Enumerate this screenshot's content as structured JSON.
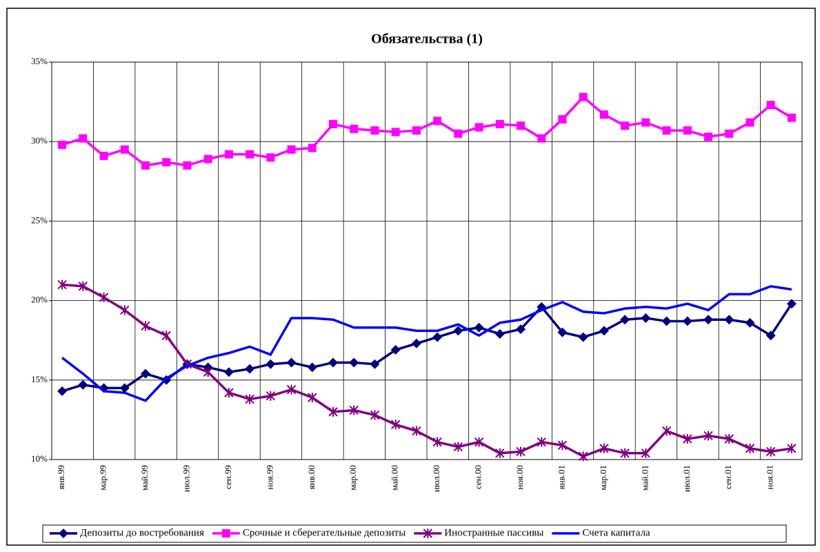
{
  "chart_data": {
    "type": "line",
    "title": "Обязательства (1)",
    "categories": [
      "янв.99",
      null,
      "мар.99",
      null,
      "май.99",
      null,
      "июл.99",
      null,
      "сен.99",
      null,
      "ноя.99",
      null,
      "янв.00",
      null,
      "мар.00",
      null,
      "май.00",
      null,
      "июл.00",
      null,
      "сен.00",
      null,
      "ноя.00",
      null,
      "янв.01",
      null,
      "мар.01",
      null,
      "май.01",
      null,
      "июл.01",
      null,
      "сен.01",
      null,
      "ноя.01",
      null
    ],
    "series": [
      {
        "name": "Депозиты до востребования",
        "color": "#000080",
        "marker": "diamond",
        "values": [
          14.3,
          14.7,
          14.5,
          14.5,
          15.4,
          15.0,
          16.0,
          15.8,
          15.5,
          15.7,
          16.0,
          16.1,
          15.8,
          16.1,
          16.1,
          16.0,
          16.9,
          17.3,
          17.7,
          18.1,
          18.3,
          17.9,
          18.2,
          19.6,
          18.0,
          17.7,
          18.1,
          18.8,
          18.9,
          18.7,
          18.7,
          18.8,
          18.8,
          18.6,
          17.8,
          19.8
        ]
      },
      {
        "name": "Срочные и сберегательные депозиты",
        "color": "#ff00ff",
        "marker": "square",
        "values": [
          29.8,
          30.2,
          29.1,
          29.5,
          28.5,
          28.7,
          28.5,
          28.9,
          29.2,
          29.2,
          29.0,
          29.5,
          29.6,
          31.1,
          30.8,
          30.7,
          30.6,
          30.7,
          31.3,
          30.5,
          30.9,
          31.1,
          31.0,
          30.2,
          31.4,
          32.8,
          31.7,
          31.0,
          31.2,
          30.7,
          30.7,
          30.3,
          30.5,
          31.2,
          32.3,
          31.5
        ]
      },
      {
        "name": "Иностранные пассивы",
        "color": "#800080",
        "marker": "star",
        "values": [
          21.0,
          20.9,
          20.2,
          19.4,
          18.4,
          17.8,
          16.0,
          15.5,
          14.2,
          13.8,
          14.0,
          14.4,
          13.9,
          13.0,
          13.1,
          12.8,
          12.2,
          11.8,
          11.1,
          10.8,
          11.1,
          10.4,
          10.5,
          11.1,
          10.9,
          10.2,
          10.7,
          10.4,
          10.4,
          11.8,
          11.3,
          11.5,
          11.3,
          10.7,
          10.5,
          10.7
        ]
      },
      {
        "name": "Счета капитала",
        "color": "#0000ff",
        "marker": "none",
        "values": [
          16.4,
          15.4,
          14.3,
          14.2,
          13.7,
          15.1,
          15.9,
          16.4,
          16.7,
          17.1,
          16.6,
          18.9,
          18.9,
          18.8,
          18.3,
          18.3,
          18.3,
          18.1,
          18.1,
          18.5,
          17.8,
          18.6,
          18.8,
          19.4,
          19.9,
          19.3,
          19.2,
          19.5,
          19.6,
          19.5,
          19.8,
          19.4,
          20.4,
          20.4,
          20.9,
          20.7
        ]
      }
    ],
    "ylim": [
      10,
      35
    ],
    "yticks": [
      {
        "value": 10,
        "label": "10%"
      },
      {
        "value": 15,
        "label": "15%"
      },
      {
        "value": 20,
        "label": "20%"
      },
      {
        "value": 25,
        "label": "25%"
      },
      {
        "value": 30,
        "label": "30%"
      },
      {
        "value": 35,
        "label": "35%"
      }
    ],
    "grid": true,
    "legend": "bottom"
  }
}
